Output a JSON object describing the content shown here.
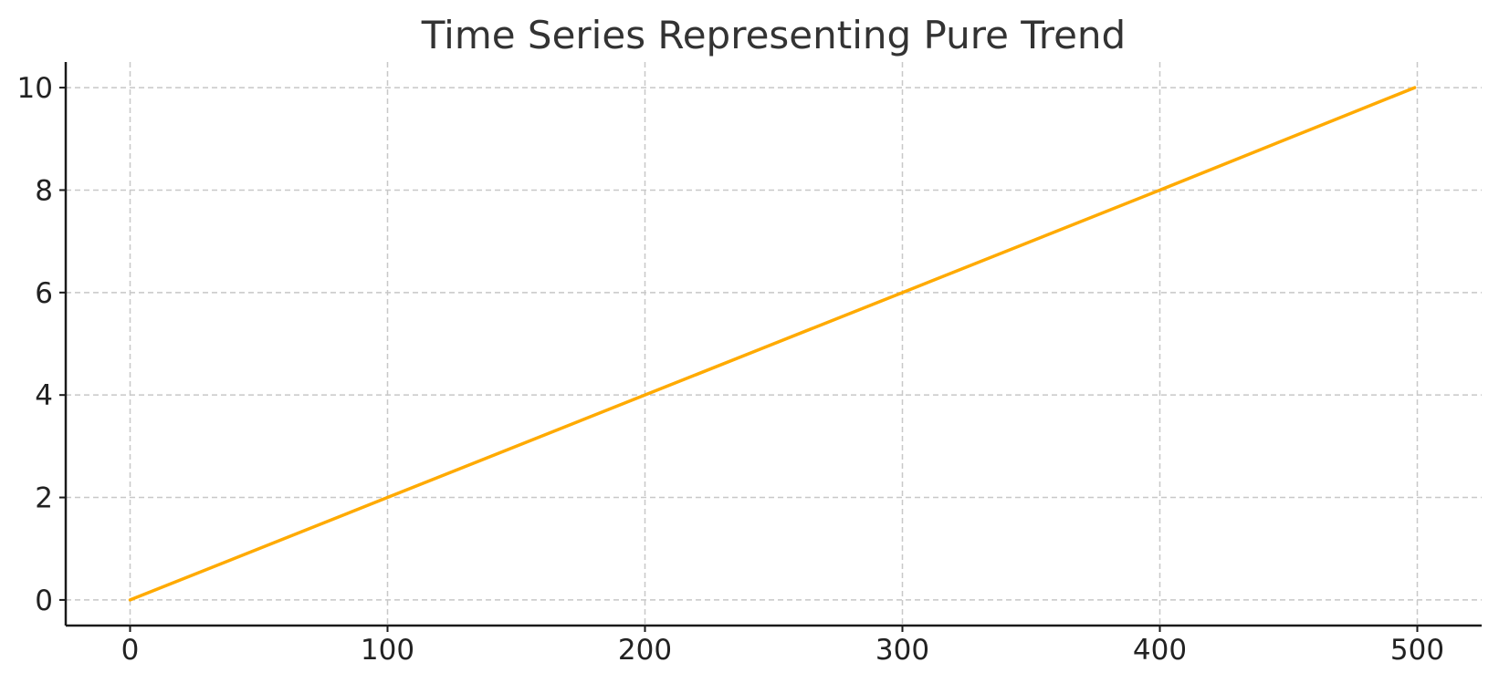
{
  "chart_data": {
    "type": "line",
    "title": "Time Series Representing Pure Trend",
    "xlabel": "",
    "ylabel": "",
    "xlim": [
      -25,
      525
    ],
    "ylim": [
      -0.5,
      10.5
    ],
    "x_ticks": [
      0,
      100,
      200,
      300,
      400,
      500
    ],
    "x_tick_labels": [
      "0",
      "100",
      "200",
      "300",
      "400",
      "500"
    ],
    "y_ticks": [
      0,
      2,
      4,
      6,
      8,
      10
    ],
    "y_tick_labels": [
      "0",
      "2",
      "4",
      "6",
      "8",
      "10"
    ],
    "grid": true,
    "series": [
      {
        "color": "#FFAA00",
        "x": [
          0,
          100,
          200,
          300,
          400,
          499
        ],
        "y": [
          0,
          2,
          4,
          6,
          8,
          10
        ]
      }
    ]
  }
}
